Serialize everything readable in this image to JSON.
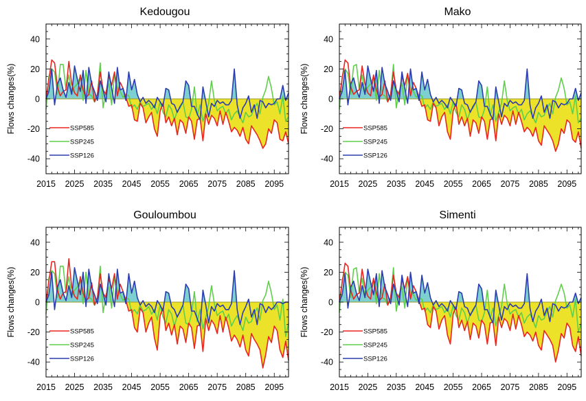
{
  "figure": {
    "legend_labels": [
      "SSP585",
      "SSP245",
      "SSP126"
    ]
  },
  "colors": {
    "SSP585": "#e8251e",
    "SSP245": "#5fcf4a",
    "SSP126": "#2a3cb0",
    "fill_positive": "#7ecfcf",
    "fill_negative": "#ece22a",
    "zero_line": "#9a9a2a"
  },
  "chart_data": [
    {
      "type": "line",
      "title": "Kedougou",
      "ylabel": "Flows changes(%)",
      "xlim": [
        2015,
        2100
      ],
      "ylim": [
        -50,
        50
      ],
      "xticks": [
        2015,
        2025,
        2035,
        2045,
        2055,
        2065,
        2075,
        2085,
        2095
      ],
      "yticks": [
        40,
        20,
        0,
        -20,
        -40
      ],
      "x_start": 2015,
      "legend_position": "left-bottom",
      "series": [
        {
          "name": "SSP585",
          "values": [
            0,
            13,
            26,
            24,
            8,
            2,
            5,
            6,
            25,
            10,
            4,
            2,
            16,
            6,
            1,
            3,
            12,
            -2,
            3,
            18,
            6,
            3,
            16,
            9,
            18,
            2,
            11,
            7,
            1,
            -5,
            -4,
            -14,
            -15,
            -3,
            -6,
            -16,
            -12,
            -9,
            -20,
            -25,
            -8,
            -3,
            -16,
            -12,
            -18,
            -13,
            -24,
            -14,
            -16,
            -23,
            -12,
            -15,
            -27,
            -14,
            -13,
            -28,
            -10,
            -17,
            -11,
            -13,
            -18,
            -8,
            -17,
            -9,
            -15,
            -22,
            -19,
            -21,
            -25,
            -19,
            -27,
            -30,
            -18,
            -21,
            -24,
            -28,
            -33,
            -30,
            -20,
            -23,
            -14,
            -16,
            -27,
            -28,
            -22,
            -30
          ]
        },
        {
          "name": "SSP245",
          "values": [
            -7,
            15,
            20,
            18,
            3,
            23,
            23,
            6,
            16,
            4,
            8,
            10,
            15,
            -1,
            19,
            3,
            2,
            -2,
            2,
            24,
            -6,
            5,
            10,
            -4,
            17,
            7,
            5,
            1,
            3,
            2,
            -6,
            -4,
            -7,
            -2,
            -5,
            -4,
            -3,
            -7,
            -4,
            -10,
            -2,
            -9,
            -12,
            -4,
            -7,
            -14,
            -8,
            -6,
            -2,
            -12,
            -13,
            -7,
            8,
            -11,
            -4,
            -15,
            -9,
            -3,
            12,
            -1,
            -8,
            -6,
            -5,
            -10,
            -7,
            -14,
            -10,
            -8,
            -12,
            -16,
            -9,
            -12,
            -11,
            -6,
            -3,
            -10,
            1,
            6,
            15,
            7,
            -4,
            -2,
            -10,
            2,
            -15,
            -12
          ]
        },
        {
          "name": "SSP126",
          "values": [
            0,
            5,
            20,
            -4,
            10,
            14,
            6,
            1,
            11,
            3,
            22,
            13,
            5,
            19,
            -3,
            21,
            10,
            5,
            -1,
            12,
            6,
            -2,
            18,
            7,
            -3,
            21,
            6,
            7,
            -1,
            18,
            6,
            13,
            3,
            -2,
            1,
            -3,
            -1,
            -3,
            -6,
            1,
            -2,
            -5,
            7,
            6,
            -3,
            -4,
            -9,
            -5,
            -2,
            12,
            9,
            -5,
            -5,
            -10,
            -14,
            8,
            -2,
            -12,
            -3,
            -5,
            -1,
            -3,
            -2,
            -4,
            -4,
            -1,
            20,
            -4,
            -13,
            -6,
            -3,
            2,
            -9,
            -4,
            -13,
            -1,
            -2,
            -6,
            -3,
            -4,
            -3,
            0,
            0,
            9,
            -1,
            4
          ]
        }
      ]
    },
    {
      "type": "line",
      "title": "Mako",
      "ylabel": "Flows changes(%)",
      "xlim": [
        2015,
        2100
      ],
      "ylim": [
        -50,
        50
      ],
      "xticks": [
        2015,
        2025,
        2035,
        2045,
        2055,
        2065,
        2075,
        2085,
        2095
      ],
      "yticks": [
        40,
        20,
        0,
        -20,
        -40
      ],
      "x_start": 2015,
      "legend_position": "left-bottom",
      "series": [
        {
          "name": "SSP585",
          "values": [
            0,
            14,
            26,
            24,
            8,
            3,
            5,
            6,
            22,
            10,
            4,
            2,
            16,
            6,
            1,
            3,
            12,
            -2,
            3,
            18,
            6,
            3,
            15,
            9,
            17,
            2,
            11,
            7,
            1,
            -5,
            -4,
            -14,
            -15,
            -3,
            -6,
            -18,
            -12,
            -9,
            -22,
            -27,
            -8,
            -3,
            -17,
            -12,
            -18,
            -13,
            -25,
            -14,
            -16,
            -23,
            -12,
            -15,
            -27,
            -14,
            -13,
            -28,
            -10,
            -17,
            -11,
            -13,
            -18,
            -8,
            -17,
            -9,
            -15,
            -22,
            -19,
            -21,
            -25,
            -19,
            -28,
            -31,
            -18,
            -21,
            -24,
            -28,
            -35,
            -30,
            -20,
            -23,
            -14,
            -16,
            -27,
            -29,
            -22,
            -33
          ]
        },
        {
          "name": "SSP245",
          "values": [
            -7,
            15,
            20,
            17,
            3,
            22,
            23,
            6,
            16,
            4,
            8,
            10,
            15,
            -1,
            19,
            3,
            2,
            -2,
            2,
            23,
            -6,
            5,
            10,
            -4,
            17,
            7,
            5,
            1,
            3,
            2,
            -6,
            -4,
            -7,
            -2,
            -5,
            -4,
            -3,
            -7,
            -4,
            -10,
            -2,
            -9,
            -12,
            -4,
            -7,
            -14,
            -8,
            -6,
            -2,
            -12,
            -13,
            -7,
            8,
            -11,
            -4,
            -15,
            -9,
            -3,
            12,
            -1,
            -8,
            -6,
            -5,
            -10,
            -7,
            -14,
            -10,
            -8,
            -12,
            -16,
            -9,
            -12,
            -11,
            -6,
            -3,
            -10,
            1,
            6,
            14,
            7,
            -4,
            -2,
            -10,
            2,
            -16,
            -13
          ]
        },
        {
          "name": "SSP126",
          "values": [
            0,
            5,
            19,
            -4,
            10,
            14,
            6,
            1,
            11,
            3,
            22,
            13,
            5,
            19,
            -3,
            21,
            10,
            5,
            -1,
            12,
            6,
            -2,
            18,
            7,
            -3,
            20,
            6,
            7,
            -1,
            18,
            6,
            13,
            3,
            -2,
            1,
            -3,
            -1,
            -3,
            -6,
            1,
            -2,
            -5,
            7,
            6,
            -3,
            -4,
            -9,
            -5,
            -2,
            12,
            9,
            -5,
            -5,
            -10,
            -14,
            8,
            -2,
            -12,
            -3,
            -5,
            -1,
            -3,
            -2,
            -4,
            -4,
            -1,
            20,
            -4,
            -13,
            -6,
            -3,
            2,
            -9,
            -4,
            -13,
            -1,
            -2,
            -6,
            -3,
            -4,
            -3,
            0,
            0,
            7,
            -1,
            4
          ]
        }
      ]
    },
    {
      "type": "line",
      "title": "Gouloumbou",
      "ylabel": "Flows changes(%)",
      "xlim": [
        2015,
        2100
      ],
      "ylim": [
        -50,
        50
      ],
      "xticks": [
        2015,
        2025,
        2035,
        2045,
        2055,
        2065,
        2075,
        2085,
        2095
      ],
      "yticks": [
        40,
        20,
        0,
        -20,
        -40
      ],
      "x_start": 2015,
      "legend_position": "left-bottom",
      "series": [
        {
          "name": "SSP585",
          "values": [
            0,
            14,
            27,
            27,
            8,
            2,
            6,
            7,
            29,
            10,
            4,
            2,
            17,
            6,
            1,
            3,
            13,
            -2,
            3,
            19,
            6,
            3,
            16,
            9,
            19,
            2,
            12,
            7,
            1,
            -6,
            -5,
            -17,
            -20,
            -4,
            -7,
            -20,
            -14,
            -10,
            -24,
            -32,
            -9,
            -4,
            -19,
            -14,
            -22,
            -15,
            -28,
            -16,
            -18,
            -27,
            -14,
            -17,
            -31,
            -16,
            -15,
            -33,
            -11,
            -19,
            -12,
            -15,
            -21,
            -9,
            -20,
            -10,
            -17,
            -26,
            -22,
            -25,
            -30,
            -22,
            -32,
            -36,
            -21,
            -25,
            -28,
            -32,
            -44,
            -35,
            -23,
            -27,
            -16,
            -19,
            -32,
            -37,
            -26,
            -39
          ]
        },
        {
          "name": "SSP245",
          "values": [
            -8,
            16,
            21,
            19,
            3,
            24,
            24,
            6,
            17,
            4,
            8,
            10,
            15,
            -1,
            20,
            3,
            2,
            -2,
            2,
            24,
            -7,
            5,
            10,
            -4,
            17,
            7,
            5,
            1,
            3,
            2,
            -7,
            -5,
            -8,
            -2,
            -6,
            -5,
            -3,
            -8,
            -5,
            -12,
            -2,
            -10,
            -14,
            -5,
            -8,
            -16,
            -9,
            -7,
            -2,
            -14,
            -15,
            -8,
            7,
            -13,
            -5,
            -18,
            -10,
            -3,
            11,
            -1,
            -9,
            -7,
            -6,
            -12,
            -8,
            -16,
            -12,
            -9,
            -14,
            -19,
            -10,
            -14,
            -13,
            -7,
            -4,
            -12,
            1,
            5,
            14,
            6,
            -5,
            -2,
            -12,
            2,
            -23,
            -14
          ]
        },
        {
          "name": "SSP126",
          "values": [
            0,
            5,
            20,
            -5,
            10,
            15,
            6,
            1,
            11,
            3,
            23,
            14,
            5,
            20,
            -3,
            22,
            10,
            5,
            -1,
            12,
            6,
            -2,
            19,
            7,
            -3,
            22,
            6,
            7,
            -1,
            19,
            6,
            14,
            3,
            -2,
            1,
            -3,
            -1,
            -3,
            -7,
            1,
            -2,
            -6,
            7,
            6,
            -3,
            -5,
            -10,
            -6,
            -2,
            12,
            9,
            -6,
            -6,
            -11,
            -16,
            8,
            -2,
            -14,
            -3,
            -6,
            -1,
            -3,
            -2,
            -5,
            -5,
            -1,
            21,
            -5,
            -15,
            -7,
            -3,
            2,
            -10,
            -5,
            -15,
            -1,
            -2,
            -7,
            -3,
            -5,
            -3,
            0,
            0,
            -1,
            0,
            0
          ]
        }
      ]
    },
    {
      "type": "line",
      "title": "Simenti",
      "ylabel": "Flows changes(%)",
      "xlim": [
        2015,
        2100
      ],
      "ylim": [
        -50,
        50
      ],
      "xticks": [
        2015,
        2025,
        2035,
        2045,
        2055,
        2065,
        2075,
        2085,
        2095
      ],
      "yticks": [
        40,
        20,
        0,
        -20,
        -40
      ],
      "x_start": 2015,
      "legend_position": "left-bottom",
      "series": [
        {
          "name": "SSP585",
          "values": [
            0,
            13,
            26,
            24,
            8,
            2,
            5,
            6,
            22,
            10,
            4,
            2,
            16,
            6,
            1,
            3,
            12,
            -2,
            3,
            18,
            6,
            3,
            15,
            9,
            17,
            2,
            11,
            7,
            1,
            -5,
            -4,
            -15,
            -17,
            -3,
            -6,
            -18,
            -12,
            -9,
            -22,
            -28,
            -8,
            -3,
            -17,
            -12,
            -19,
            -13,
            -25,
            -14,
            -16,
            -24,
            -12,
            -15,
            -28,
            -14,
            -13,
            -29,
            -10,
            -17,
            -11,
            -13,
            -19,
            -8,
            -18,
            -9,
            -15,
            -23,
            -20,
            -22,
            -26,
            -20,
            -29,
            -32,
            -19,
            -22,
            -25,
            -29,
            -40,
            -32,
            -21,
            -24,
            -14,
            -17,
            -29,
            -33,
            -23,
            -36
          ]
        },
        {
          "name": "SSP245",
          "values": [
            -7,
            15,
            20,
            18,
            3,
            22,
            23,
            6,
            16,
            4,
            8,
            10,
            15,
            -1,
            19,
            3,
            2,
            -2,
            2,
            23,
            -6,
            5,
            10,
            -4,
            17,
            7,
            5,
            1,
            3,
            2,
            -6,
            -4,
            -7,
            -2,
            -5,
            -4,
            -3,
            -7,
            -4,
            -10,
            -2,
            -9,
            -12,
            -4,
            -7,
            -14,
            -8,
            -6,
            -2,
            -12,
            -13,
            -7,
            8,
            -11,
            -4,
            -16,
            -9,
            -3,
            12,
            -1,
            -8,
            -6,
            -5,
            -10,
            -7,
            -14,
            -10,
            -8,
            -12,
            -17,
            -9,
            -12,
            -11,
            -6,
            -3,
            -10,
            1,
            6,
            12,
            6,
            -4,
            -2,
            -10,
            2,
            -20,
            -14
          ]
        },
        {
          "name": "SSP126",
          "values": [
            0,
            5,
            19,
            -4,
            10,
            14,
            6,
            1,
            11,
            3,
            22,
            13,
            5,
            19,
            -3,
            21,
            10,
            5,
            -1,
            12,
            6,
            -2,
            18,
            7,
            -3,
            20,
            6,
            7,
            -1,
            18,
            6,
            13,
            3,
            -2,
            1,
            -3,
            -1,
            -3,
            -6,
            1,
            -2,
            -5,
            7,
            6,
            -3,
            -4,
            -9,
            -5,
            -2,
            12,
            9,
            -5,
            -5,
            -10,
            -14,
            8,
            -2,
            -12,
            -3,
            -5,
            -1,
            -3,
            -2,
            -4,
            -4,
            -1,
            19,
            -4,
            -13,
            -6,
            -3,
            2,
            -9,
            -4,
            -13,
            -1,
            -2,
            -6,
            -3,
            -4,
            -3,
            0,
            0,
            6,
            -1,
            3
          ]
        }
      ]
    }
  ]
}
